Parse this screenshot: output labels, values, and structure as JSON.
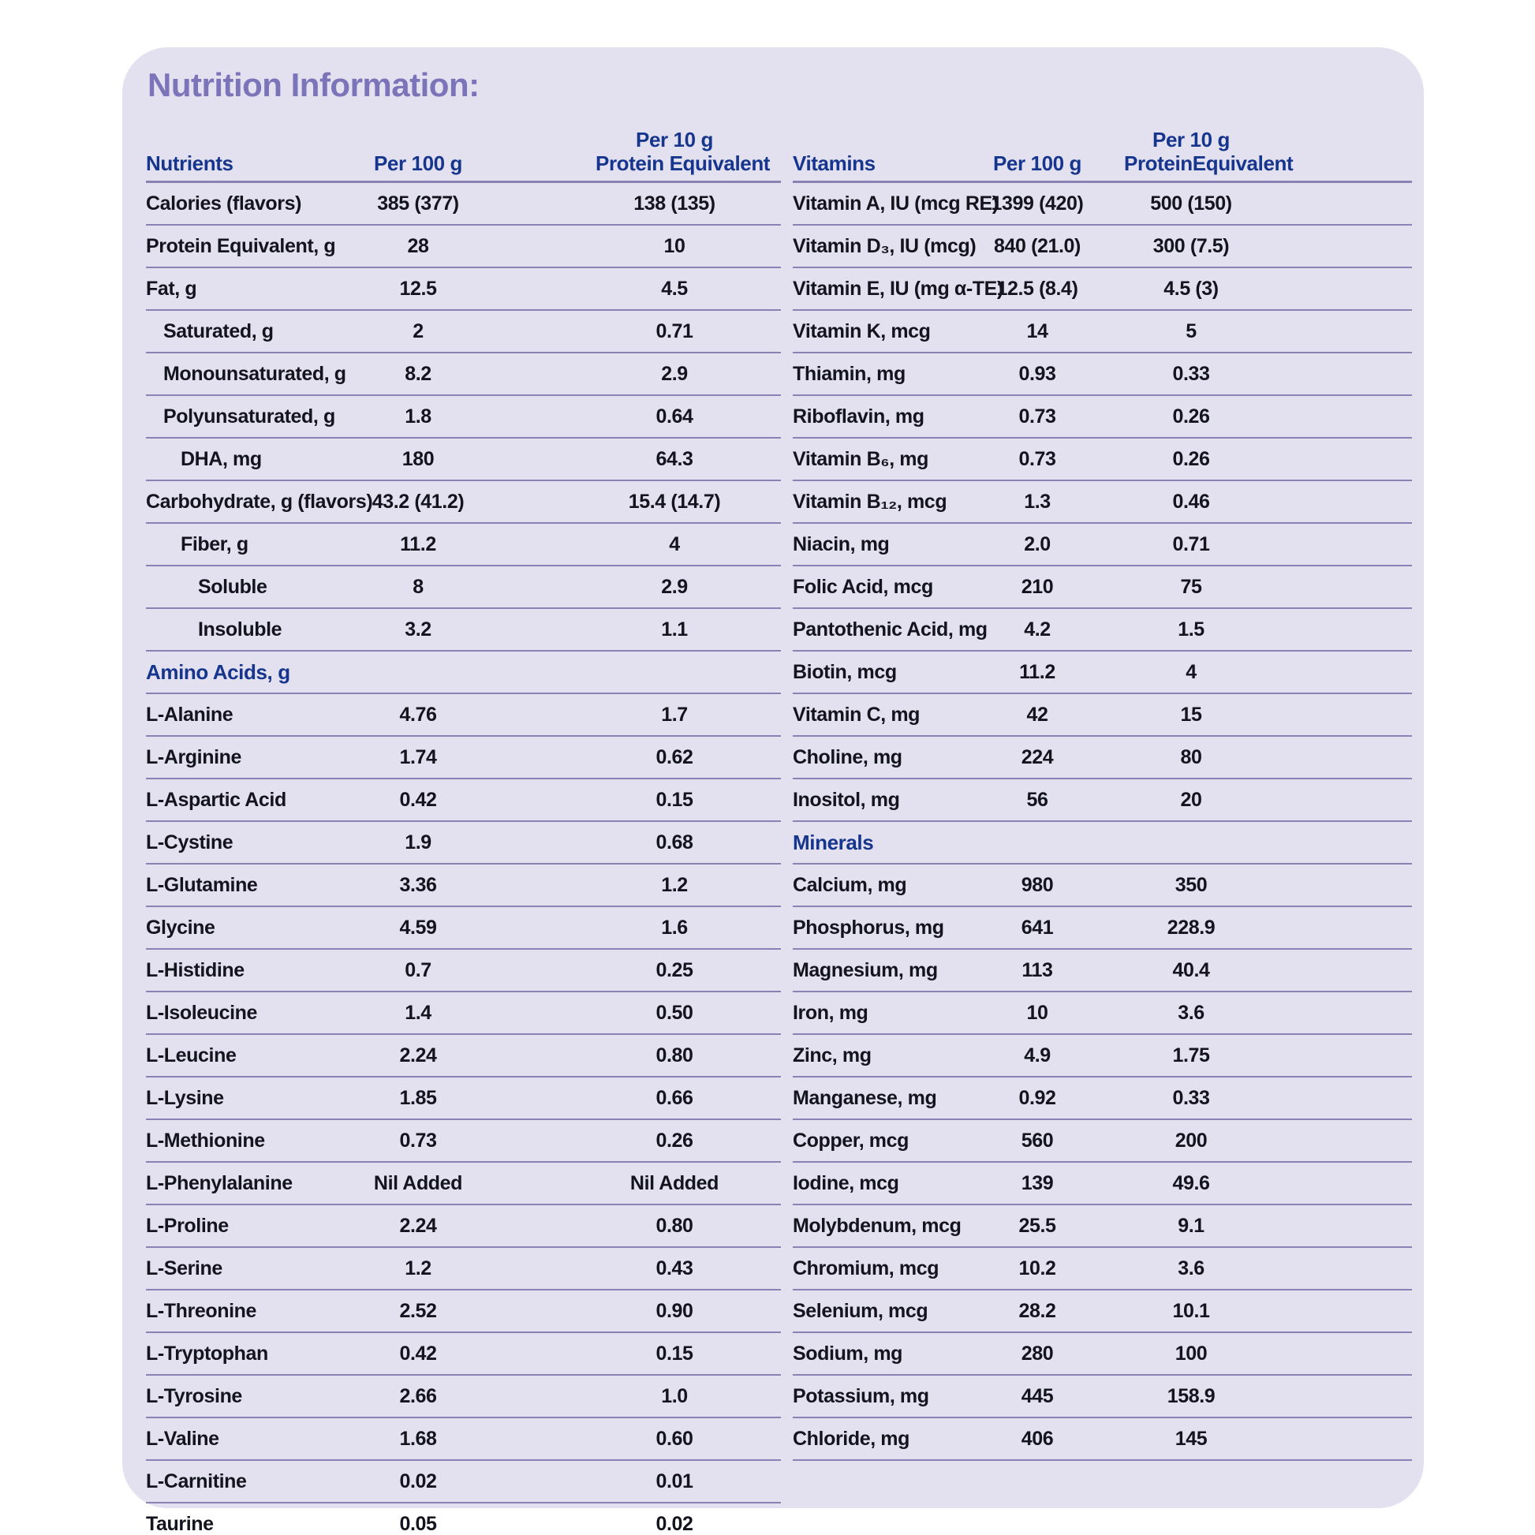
{
  "title": "Nutrition Information:",
  "colors": {
    "page_bg": "#ffffff",
    "card_bg": "#e3e0ef",
    "title_text": "#7c74b9",
    "header_text": "#16358d",
    "body_text": "#14141f",
    "line": "#8a82b5"
  },
  "left_table": {
    "headers": {
      "col0": "Nutrients",
      "col1": "Per 100 g",
      "col2_line1": "Per 10 g",
      "col2_line2": "Protein Equivalent"
    },
    "rows": [
      {
        "label": "Calories (flavors)",
        "indent": 0,
        "v1": "385 (377)",
        "v2": "138 (135)"
      },
      {
        "label": "Protein Equivalent, g",
        "indent": 0,
        "v1": "28",
        "v2": "10"
      },
      {
        "label": "Fat, g",
        "indent": 0,
        "v1": "12.5",
        "v2": "4.5"
      },
      {
        "label": "Saturated, g",
        "indent": 1,
        "v1": "2",
        "v2": "0.71"
      },
      {
        "label": "Monounsaturated, g",
        "indent": 1,
        "v1": "8.2",
        "v2": "2.9"
      },
      {
        "label": "Polyunsaturated, g",
        "indent": 1,
        "v1": "1.8",
        "v2": "0.64"
      },
      {
        "label": "DHA, mg",
        "indent": 2,
        "v1": "180",
        "v2": "64.3"
      },
      {
        "label": "Carbohydrate, g (flavors)",
        "indent": 0,
        "v1": "43.2 (41.2)",
        "v2": "15.4 (14.7)"
      },
      {
        "label": "Fiber, g",
        "indent": 2,
        "v1": "11.2",
        "v2": "4"
      },
      {
        "label": "Soluble",
        "indent": 3,
        "v1": "8",
        "v2": "2.9"
      },
      {
        "label": "Insoluble",
        "indent": 3,
        "v1": "3.2",
        "v2": "1.1"
      },
      {
        "type": "section",
        "label": "Amino Acids, g"
      },
      {
        "label": "L-Alanine",
        "indent": 0,
        "v1": "4.76",
        "v2": "1.7"
      },
      {
        "label": "L-Arginine",
        "indent": 0,
        "v1": "1.74",
        "v2": "0.62"
      },
      {
        "label": "L-Aspartic Acid",
        "indent": 0,
        "v1": "0.42",
        "v2": "0.15"
      },
      {
        "label": "L-Cystine",
        "indent": 0,
        "v1": "1.9",
        "v2": "0.68"
      },
      {
        "label": "L-Glutamine",
        "indent": 0,
        "v1": "3.36",
        "v2": "1.2"
      },
      {
        "label": "Glycine",
        "indent": 0,
        "v1": "4.59",
        "v2": "1.6"
      },
      {
        "label": "L-Histidine",
        "indent": 0,
        "v1": "0.7",
        "v2": "0.25"
      },
      {
        "label": "L-Isoleucine",
        "indent": 0,
        "v1": "1.4",
        "v2": "0.50"
      },
      {
        "label": "L-Leucine",
        "indent": 0,
        "v1": "2.24",
        "v2": "0.80"
      },
      {
        "label": "L-Lysine",
        "indent": 0,
        "v1": "1.85",
        "v2": "0.66"
      },
      {
        "label": "L-Methionine",
        "indent": 0,
        "v1": "0.73",
        "v2": "0.26"
      },
      {
        "label": "L-Phenylalanine",
        "indent": 0,
        "v1": "Nil Added",
        "v2": "Nil Added"
      },
      {
        "label": "L-Proline",
        "indent": 0,
        "v1": "2.24",
        "v2": "0.80"
      },
      {
        "label": "L-Serine",
        "indent": 0,
        "v1": "1.2",
        "v2": "0.43"
      },
      {
        "label": "L-Threonine",
        "indent": 0,
        "v1": "2.52",
        "v2": "0.90"
      },
      {
        "label": "L-Tryptophan",
        "indent": 0,
        "v1": "0.42",
        "v2": "0.15"
      },
      {
        "label": "L-Tyrosine",
        "indent": 0,
        "v1": "2.66",
        "v2": "1.0"
      },
      {
        "label": "L-Valine",
        "indent": 0,
        "v1": "1.68",
        "v2": "0.60"
      },
      {
        "label": "L-Carnitine",
        "indent": 0,
        "v1": "0.02",
        "v2": "0.01"
      },
      {
        "label": "Taurine",
        "indent": 0,
        "v1": "0.05",
        "v2": "0.02"
      }
    ]
  },
  "right_table": {
    "headers": {
      "col0": "Vitamins",
      "col1": "Per 100 g",
      "col2_line1": "Per 10 g",
      "col2_line2": "ProteinEquivalent"
    },
    "rows": [
      {
        "label": "Vitamin A, IU (mcg RE)",
        "indent": 0,
        "v1": "1399 (420)",
        "v2": "500 (150)"
      },
      {
        "label": "Vitamin D₃, IU (mcg)",
        "indent": 0,
        "v1": "840 (21.0)",
        "v2": "300 (7.5)"
      },
      {
        "label": "Vitamin E, IU (mg α-TE)",
        "indent": 0,
        "v1": "12.5 (8.4)",
        "v2": "4.5 (3)"
      },
      {
        "label": "Vitamin K, mcg",
        "indent": 0,
        "v1": "14",
        "v2": "5"
      },
      {
        "label": "Thiamin, mg",
        "indent": 0,
        "v1": "0.93",
        "v2": "0.33"
      },
      {
        "label": "Riboflavin, mg",
        "indent": 0,
        "v1": "0.73",
        "v2": "0.26"
      },
      {
        "label": "Vitamin B₆, mg",
        "indent": 0,
        "v1": "0.73",
        "v2": "0.26"
      },
      {
        "label": "Vitamin B₁₂, mcg",
        "indent": 0,
        "v1": "1.3",
        "v2": "0.46"
      },
      {
        "label": "Niacin, mg",
        "indent": 0,
        "v1": "2.0",
        "v2": "0.71"
      },
      {
        "label": "Folic Acid, mcg",
        "indent": 0,
        "v1": "210",
        "v2": "75"
      },
      {
        "label": "Pantothenic Acid, mg",
        "indent": 0,
        "v1": "4.2",
        "v2": "1.5"
      },
      {
        "label": "Biotin, mcg",
        "indent": 0,
        "v1": "11.2",
        "v2": "4"
      },
      {
        "label": "Vitamin C, mg",
        "indent": 0,
        "v1": "42",
        "v2": "15"
      },
      {
        "label": "Choline, mg",
        "indent": 0,
        "v1": "224",
        "v2": "80"
      },
      {
        "label": "Inositol, mg",
        "indent": 0,
        "v1": "56",
        "v2": "20"
      },
      {
        "type": "section",
        "label": "Minerals"
      },
      {
        "label": "Calcium, mg",
        "indent": 0,
        "v1": "980",
        "v2": "350"
      },
      {
        "label": "Phosphorus, mg",
        "indent": 0,
        "v1": "641",
        "v2": "228.9"
      },
      {
        "label": "Magnesium, mg",
        "indent": 0,
        "v1": "113",
        "v2": "40.4"
      },
      {
        "label": "Iron, mg",
        "indent": 0,
        "v1": "10",
        "v2": "3.6"
      },
      {
        "label": "Zinc, mg",
        "indent": 0,
        "v1": "4.9",
        "v2": "1.75"
      },
      {
        "label": "Manganese, mg",
        "indent": 0,
        "v1": "0.92",
        "v2": "0.33"
      },
      {
        "label": "Copper, mcg",
        "indent": 0,
        "v1": "560",
        "v2": "200"
      },
      {
        "label": "Iodine, mcg",
        "indent": 0,
        "v1": "139",
        "v2": "49.6"
      },
      {
        "label": "Molybdenum, mcg",
        "indent": 0,
        "v1": "25.5",
        "v2": "9.1"
      },
      {
        "label": "Chromium, mcg",
        "indent": 0,
        "v1": "10.2",
        "v2": "3.6"
      },
      {
        "label": "Selenium, mcg",
        "indent": 0,
        "v1": "28.2",
        "v2": "10.1"
      },
      {
        "label": "Sodium, mg",
        "indent": 0,
        "v1": "280",
        "v2": "100"
      },
      {
        "label": "Potassium, mg",
        "indent": 0,
        "v1": "445",
        "v2": "158.9"
      },
      {
        "label": "Chloride, mg",
        "indent": 0,
        "v1": "406",
        "v2": "145"
      }
    ]
  }
}
